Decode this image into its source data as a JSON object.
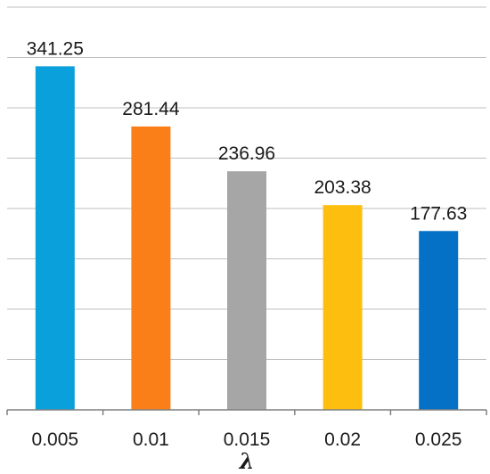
{
  "chart_data": {
    "type": "bar",
    "categories": [
      "0.005",
      "0.01",
      "0.015",
      "0.02",
      "0.025"
    ],
    "values": [
      341.25,
      281.44,
      236.96,
      203.38,
      177.63
    ],
    "data_labels": [
      "341.25",
      "281.44",
      "236.96",
      "203.38",
      "177.63"
    ],
    "colors": [
      "#0aa0dc",
      "#fb7f19",
      "#a6a6a6",
      "#fdbe10",
      "#0471c7"
    ],
    "title": "",
    "xlabel": "λ",
    "ylabel": "",
    "ylim": [
      0,
      400
    ],
    "ytick_step": 50,
    "show_y_tick_labels": false,
    "grid": true,
    "legend": "none"
  }
}
